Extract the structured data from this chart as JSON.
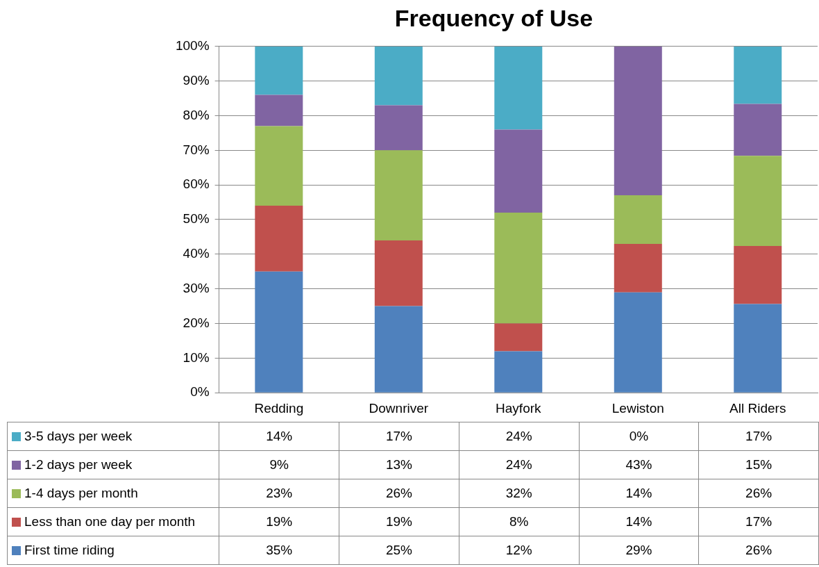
{
  "chart_data": {
    "type": "bar",
    "title": "Frequency of Use",
    "stacked": true,
    "categories": [
      "Redding",
      "Downriver",
      "Hayfork",
      "Lewiston",
      "All Riders"
    ],
    "series": [
      {
        "name": "First time riding",
        "color": "#4f81bd",
        "values": [
          35,
          25,
          12,
          29,
          25.6
        ],
        "value_labels": [
          "35%",
          "25%",
          "12%",
          "29%",
          "26%"
        ]
      },
      {
        "name": "Less than one day per month",
        "color": "#c0504d",
        "values": [
          19,
          19,
          8,
          14,
          16.8
        ],
        "value_labels": [
          "19%",
          "19%",
          "8%",
          "14%",
          "17%"
        ]
      },
      {
        "name": "1-4 days per month",
        "color": "#9bbb59",
        "values": [
          23,
          26,
          32,
          14,
          26
        ],
        "value_labels": [
          "23%",
          "26%",
          "32%",
          "14%",
          "26%"
        ]
      },
      {
        "name": "1-2 days per week",
        "color": "#8064a2",
        "values": [
          9,
          13,
          24,
          43,
          15
        ],
        "value_labels": [
          "9%",
          "13%",
          "24%",
          "43%",
          "15%"
        ]
      },
      {
        "name": "3-5 days per week",
        "color": "#4bacc6",
        "values": [
          14,
          17,
          24,
          0,
          16.6
        ],
        "value_labels": [
          "14%",
          "17%",
          "24%",
          "0%",
          "17%"
        ]
      }
    ],
    "ylim": [
      0,
      100
    ],
    "yticks": [
      {
        "value": 0,
        "label": "0%"
      },
      {
        "value": 10,
        "label": "10%"
      },
      {
        "value": 20,
        "label": "20%"
      },
      {
        "value": 30,
        "label": "30%"
      },
      {
        "value": 40,
        "label": "40%"
      },
      {
        "value": 50,
        "label": "50%"
      },
      {
        "value": 60,
        "label": "60%"
      },
      {
        "value": 70,
        "label": "70%"
      },
      {
        "value": 80,
        "label": "80%"
      },
      {
        "value": 90,
        "label": "90%"
      },
      {
        "value": 100,
        "label": "100%"
      }
    ],
    "grid": "y",
    "legend": "bottom"
  }
}
